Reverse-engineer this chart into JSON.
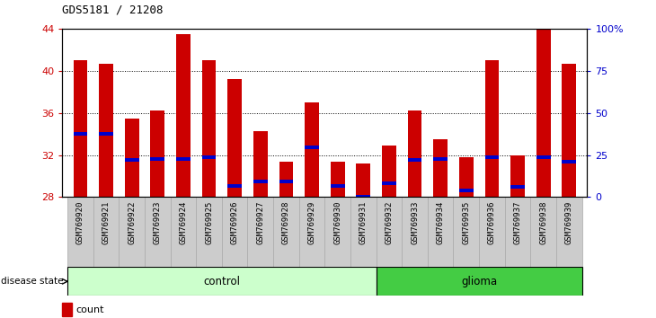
{
  "title": "GDS5181 / 21208",
  "samples": [
    "GSM769920",
    "GSM769921",
    "GSM769922",
    "GSM769923",
    "GSM769924",
    "GSM769925",
    "GSM769926",
    "GSM769927",
    "GSM769928",
    "GSM769929",
    "GSM769930",
    "GSM769931",
    "GSM769932",
    "GSM769933",
    "GSM769934",
    "GSM769935",
    "GSM769936",
    "GSM769937",
    "GSM769938",
    "GSM769939"
  ],
  "count_values": [
    41.0,
    40.7,
    35.5,
    36.2,
    43.5,
    41.0,
    39.2,
    34.3,
    31.4,
    37.0,
    31.4,
    31.2,
    32.9,
    36.2,
    33.5,
    31.8,
    41.0,
    32.0,
    44.0,
    40.7
  ],
  "percentile_values": [
    34.0,
    34.0,
    31.5,
    31.6,
    31.6,
    31.8,
    29.1,
    29.5,
    29.5,
    32.7,
    29.1,
    28.0,
    29.3,
    31.5,
    31.6,
    28.6,
    31.8,
    29.0,
    31.8,
    31.4
  ],
  "y_min": 28,
  "y_max": 44,
  "y_ticks": [
    28,
    32,
    36,
    40,
    44
  ],
  "y_right_ticks": [
    0,
    25,
    50,
    75,
    100
  ],
  "y_right_labels": [
    "0",
    "25",
    "50",
    "75",
    "100%"
  ],
  "bar_color": "#cc0000",
  "percentile_color": "#0000cc",
  "control_color": "#ccffcc",
  "glioma_color": "#44cc44",
  "control_count": 12,
  "glioma_count": 8,
  "tick_label_color_left": "#cc0000",
  "tick_label_color_right": "#0000cc",
  "bar_width": 0.55,
  "xtick_bg_color": "#cccccc"
}
